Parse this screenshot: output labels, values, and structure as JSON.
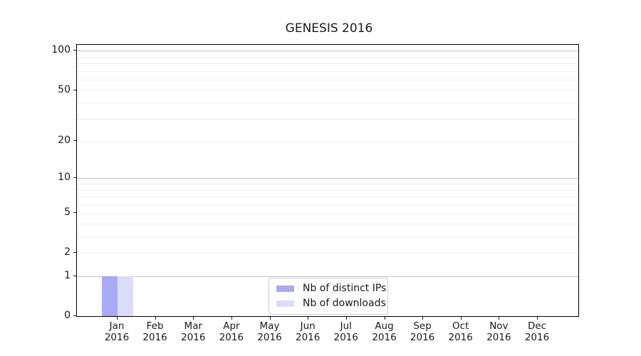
{
  "chart_data": {
    "type": "bar",
    "title": "GENESIS 2016",
    "categories": [
      {
        "month": "Jan",
        "year": "2016"
      },
      {
        "month": "Feb",
        "year": "2016"
      },
      {
        "month": "Mar",
        "year": "2016"
      },
      {
        "month": "Apr",
        "year": "2016"
      },
      {
        "month": "May",
        "year": "2016"
      },
      {
        "month": "Jun",
        "year": "2016"
      },
      {
        "month": "Jul",
        "year": "2016"
      },
      {
        "month": "Aug",
        "year": "2016"
      },
      {
        "month": "Sep",
        "year": "2016"
      },
      {
        "month": "Oct",
        "year": "2016"
      },
      {
        "month": "Nov",
        "year": "2016"
      },
      {
        "month": "Dec",
        "year": "2016"
      }
    ],
    "series": [
      {
        "name": "Nb of distinct IPs",
        "color": "#a9a9f4",
        "values": [
          1,
          0,
          0,
          0,
          0,
          0,
          0,
          0,
          0,
          0,
          0,
          0
        ]
      },
      {
        "name": "Nb of downloads",
        "color": "#dcdcf9",
        "values": [
          1,
          0,
          0,
          0,
          0,
          0,
          0,
          0,
          0,
          0,
          0,
          0
        ]
      }
    ],
    "yscale": "log1p",
    "ylim": [
      0,
      111
    ],
    "yticks": [
      0,
      1,
      2,
      5,
      10,
      20,
      50,
      100
    ],
    "ygrid_major": [
      1,
      10,
      100
    ],
    "ygrid_minor": [
      2,
      3,
      4,
      5,
      6,
      7,
      8,
      9,
      20,
      30,
      40,
      50,
      60,
      70,
      80,
      90
    ],
    "grid": true,
    "legend_position": "bottom-center",
    "xlabel": "",
    "ylabel": ""
  },
  "colors": {
    "spine": "#000000",
    "grid_major": "#c3c3c3",
    "grid_minor": "#ededed",
    "text": "#1a1a1a",
    "legend_border": "#cccccc",
    "background": "#ffffff"
  }
}
